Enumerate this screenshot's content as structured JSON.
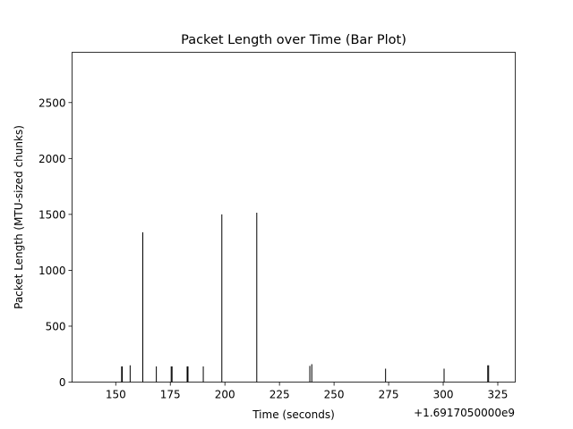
{
  "chart_data": {
    "type": "bar",
    "title": "Packet Length over Time (Bar Plot)",
    "xlabel": "Time (seconds)",
    "ylabel": "Packet Length (MTU-sized chunks)",
    "x_offset_label": "+1.6917050000e9",
    "xlim": [
      130,
      333
    ],
    "ylim": [
      0,
      2950
    ],
    "xticks": [
      150,
      175,
      200,
      225,
      250,
      275,
      300,
      325
    ],
    "yticks": [
      0,
      500,
      1000,
      1500,
      2000,
      2500
    ],
    "grid": false,
    "bar_color": "#000000",
    "points": [
      {
        "x": 152.7,
        "y": 140
      },
      {
        "x": 153.0,
        "y": 140
      },
      {
        "x": 156.6,
        "y": 150
      },
      {
        "x": 162.4,
        "y": 1340
      },
      {
        "x": 168.6,
        "y": 140
      },
      {
        "x": 175.4,
        "y": 140
      },
      {
        "x": 175.8,
        "y": 140
      },
      {
        "x": 182.7,
        "y": 140
      },
      {
        "x": 183.1,
        "y": 140
      },
      {
        "x": 190.1,
        "y": 140
      },
      {
        "x": 198.6,
        "y": 1500
      },
      {
        "x": 214.6,
        "y": 1515
      },
      {
        "x": 238.9,
        "y": 145
      },
      {
        "x": 239.8,
        "y": 160
      },
      {
        "x": 273.6,
        "y": 120
      },
      {
        "x": 300.4,
        "y": 120
      },
      {
        "x": 320.4,
        "y": 150
      },
      {
        "x": 320.8,
        "y": 150
      }
    ]
  }
}
